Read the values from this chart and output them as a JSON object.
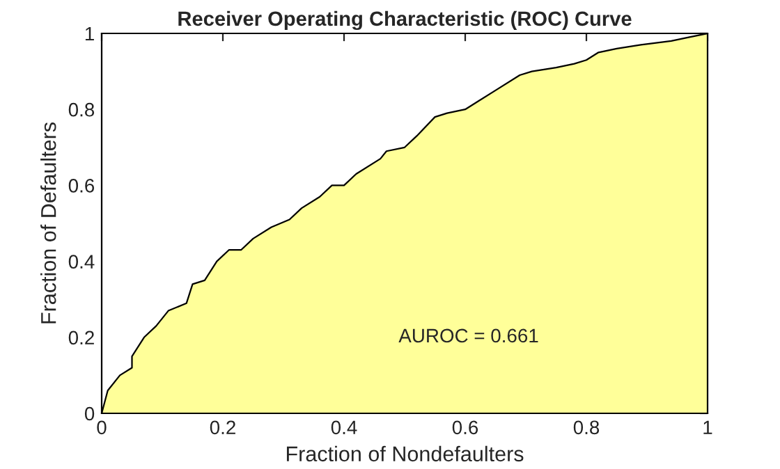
{
  "chart_data": {
    "type": "area",
    "title": "Receiver Operating Characteristic (ROC) Curve",
    "xlabel": "Fraction of Nondefaulters",
    "ylabel": "Fraction of Defaulters",
    "x": [
      0,
      0.01,
      0.03,
      0.05,
      0.05,
      0.07,
      0.09,
      0.11,
      0.14,
      0.15,
      0.17,
      0.19,
      0.21,
      0.23,
      0.25,
      0.28,
      0.31,
      0.33,
      0.36,
      0.38,
      0.4,
      0.42,
      0.46,
      0.47,
      0.5,
      0.52,
      0.55,
      0.57,
      0.6,
      0.62,
      0.65,
      0.69,
      0.71,
      0.75,
      0.78,
      0.8,
      0.82,
      0.85,
      0.89,
      0.94,
      0.97,
      1
    ],
    "series": [
      {
        "color": "#ffff99",
        "values": [
          0,
          0.06,
          0.1,
          0.12,
          0.15,
          0.2,
          0.23,
          0.27,
          0.29,
          0.34,
          0.35,
          0.4,
          0.43,
          0.43,
          0.46,
          0.49,
          0.51,
          0.54,
          0.57,
          0.6,
          0.6,
          0.63,
          0.67,
          0.69,
          0.7,
          0.73,
          0.78,
          0.79,
          0.8,
          0.82,
          0.85,
          0.89,
          0.9,
          0.91,
          0.92,
          0.93,
          0.95,
          0.96,
          0.97,
          0.98,
          0.99,
          1
        ]
      }
    ],
    "xlim": [
      0,
      1
    ],
    "ylim": [
      0,
      1
    ],
    "xticks": [
      0,
      0.2,
      0.4,
      0.6,
      0.8,
      1
    ],
    "yticks": [
      0,
      0.2,
      0.4,
      0.6,
      0.8,
      1
    ],
    "annotations": [
      "AUROC = 0.661"
    ]
  }
}
